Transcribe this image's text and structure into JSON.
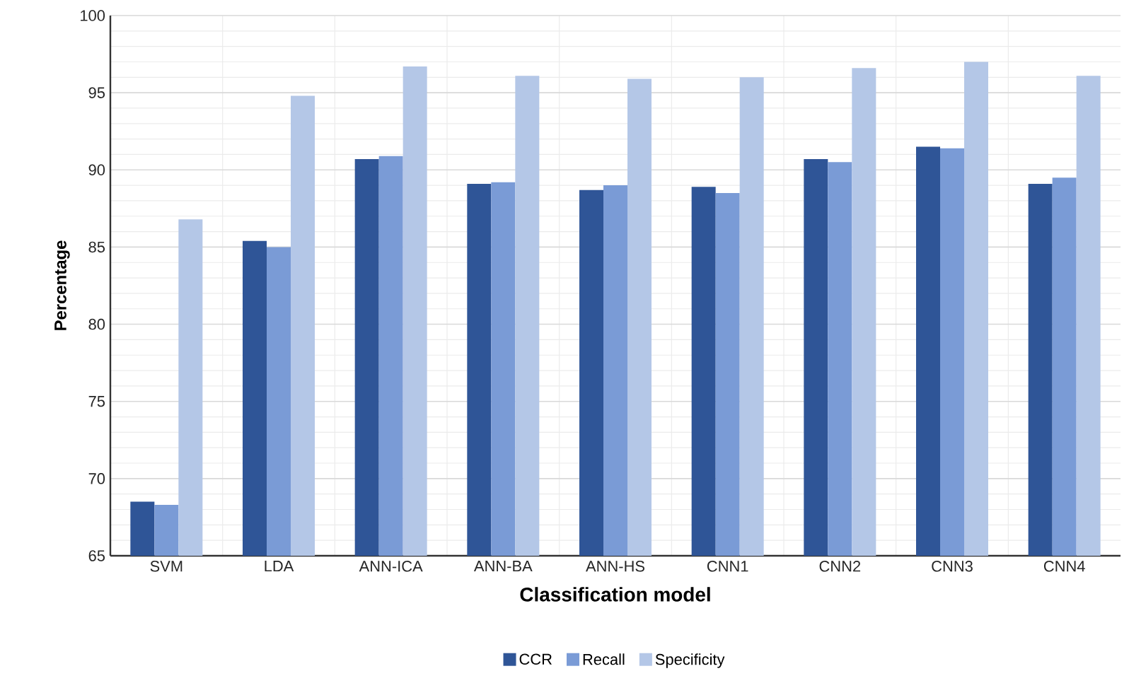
{
  "chart_data": {
    "type": "bar",
    "xlabel": "Classification model",
    "ylabel": "Percentage",
    "categories": [
      "SVM",
      "LDA",
      "ANN-ICA",
      "ANN-BA",
      "ANN-HS",
      "CNN1",
      "CNN2",
      "CNN3",
      "CNN4"
    ],
    "series": [
      {
        "name": "CCR",
        "color": "#2f5597",
        "values": [
          68.5,
          85.4,
          90.7,
          89.1,
          88.7,
          88.9,
          90.7,
          91.5,
          89.1
        ]
      },
      {
        "name": "Recall",
        "color": "#7a9bd6",
        "values": [
          68.3,
          85.0,
          90.9,
          89.2,
          89.0,
          88.5,
          90.5,
          91.4,
          89.5
        ]
      },
      {
        "name": "Specificity",
        "color": "#b4c7e7",
        "values": [
          86.8,
          94.8,
          96.7,
          96.1,
          95.9,
          96.0,
          96.6,
          97.0,
          96.1
        ]
      }
    ],
    "ylim": [
      65,
      100
    ],
    "yticks": [
      65,
      70,
      75,
      80,
      85,
      90,
      95,
      100
    ],
    "grid": true,
    "legend": "bottom"
  }
}
